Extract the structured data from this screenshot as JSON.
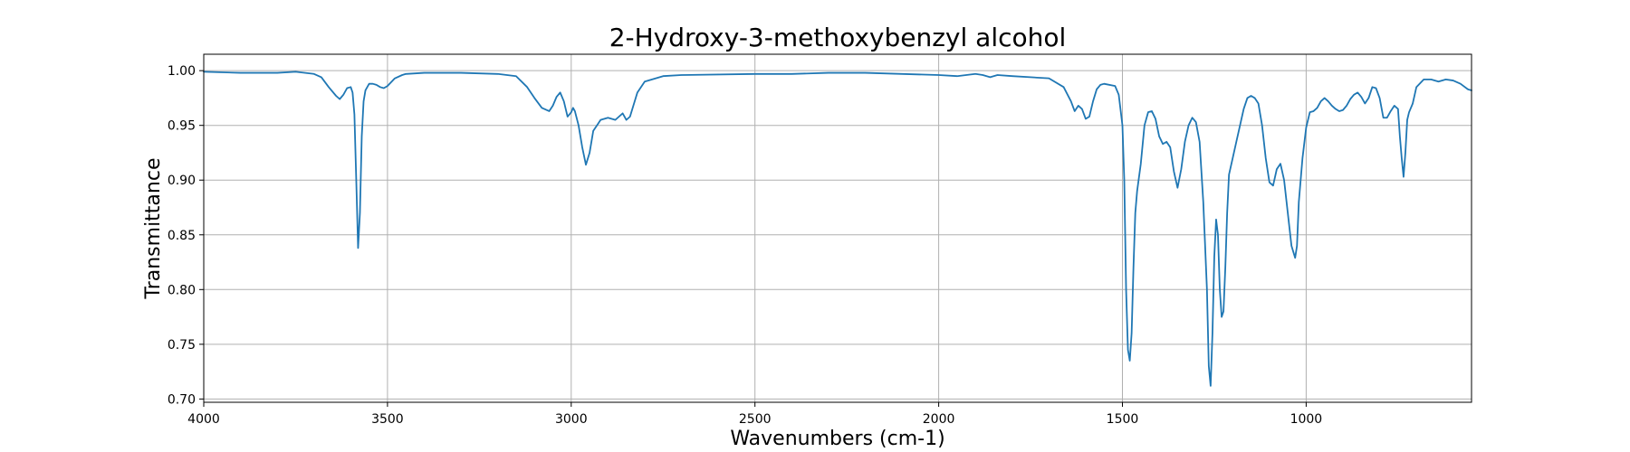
{
  "chart_data": {
    "type": "line",
    "title": "2-Hydroxy-3-methoxybenzyl alcohol",
    "xlabel": "Wavenumbers (cm-1)",
    "ylabel": "Transmittance",
    "xlim": [
      4000,
      550
    ],
    "ylim": [
      0.697,
      1.015
    ],
    "x_reversed": true,
    "grid": true,
    "x_ticks": [
      4000,
      3500,
      3000,
      2500,
      2000,
      1500,
      1000
    ],
    "x_tick_labels": [
      "4000",
      "3500",
      "3000",
      "2500",
      "2000",
      "1500",
      "1000"
    ],
    "y_ticks": [
      0.7,
      0.75,
      0.8,
      0.85,
      0.9,
      0.95,
      1.0
    ],
    "y_tick_labels": [
      "0.70",
      "0.75",
      "0.80",
      "0.85",
      "0.90",
      "0.95",
      "1.00"
    ],
    "series": [
      {
        "color": "#1f77b4",
        "x": [
          4000,
          3900,
          3800,
          3750,
          3700,
          3680,
          3660,
          3640,
          3630,
          3620,
          3610,
          3600,
          3595,
          3590,
          3585,
          3580,
          3575,
          3570,
          3565,
          3560,
          3550,
          3540,
          3530,
          3520,
          3510,
          3500,
          3480,
          3460,
          3450,
          3400,
          3300,
          3200,
          3150,
          3120,
          3100,
          3080,
          3060,
          3050,
          3040,
          3030,
          3020,
          3010,
          3000,
          2995,
          2990,
          2980,
          2970,
          2960,
          2950,
          2940,
          2930,
          2920,
          2900,
          2880,
          2870,
          2860,
          2850,
          2840,
          2820,
          2800,
          2750,
          2700,
          2500,
          2400,
          2300,
          2200,
          2000,
          1950,
          1900,
          1880,
          1860,
          1840,
          1800,
          1700,
          1660,
          1640,
          1630,
          1620,
          1610,
          1600,
          1590,
          1580,
          1570,
          1560,
          1550,
          1520,
          1510,
          1500,
          1495,
          1490,
          1485,
          1480,
          1475,
          1470,
          1465,
          1460,
          1450,
          1440,
          1430,
          1420,
          1410,
          1400,
          1390,
          1380,
          1370,
          1360,
          1350,
          1340,
          1330,
          1320,
          1310,
          1300,
          1290,
          1280,
          1270,
          1265,
          1260,
          1255,
          1250,
          1245,
          1240,
          1235,
          1230,
          1225,
          1220,
          1215,
          1210,
          1200,
          1190,
          1180,
          1170,
          1160,
          1150,
          1140,
          1130,
          1120,
          1110,
          1100,
          1090,
          1080,
          1070,
          1060,
          1050,
          1040,
          1030,
          1025,
          1020,
          1010,
          1000,
          990,
          980,
          970,
          960,
          950,
          940,
          930,
          920,
          910,
          900,
          890,
          880,
          870,
          860,
          850,
          840,
          830,
          820,
          810,
          800,
          790,
          780,
          770,
          760,
          750,
          745,
          740,
          735,
          730,
          725,
          720,
          710,
          700,
          680,
          660,
          640,
          620,
          600,
          580,
          560,
          550
        ],
        "y": [
          0.999,
          0.998,
          0.998,
          0.999,
          0.997,
          0.994,
          0.985,
          0.977,
          0.974,
          0.978,
          0.984,
          0.985,
          0.98,
          0.96,
          0.9,
          0.838,
          0.87,
          0.94,
          0.972,
          0.982,
          0.988,
          0.988,
          0.987,
          0.985,
          0.984,
          0.986,
          0.993,
          0.996,
          0.997,
          0.998,
          0.998,
          0.997,
          0.995,
          0.985,
          0.975,
          0.966,
          0.963,
          0.968,
          0.976,
          0.98,
          0.972,
          0.958,
          0.962,
          0.966,
          0.963,
          0.95,
          0.93,
          0.914,
          0.925,
          0.945,
          0.95,
          0.955,
          0.957,
          0.955,
          0.958,
          0.961,
          0.955,
          0.958,
          0.98,
          0.99,
          0.995,
          0.996,
          0.997,
          0.997,
          0.998,
          0.998,
          0.996,
          0.995,
          0.997,
          0.996,
          0.994,
          0.996,
          0.995,
          0.993,
          0.985,
          0.972,
          0.963,
          0.968,
          0.965,
          0.956,
          0.958,
          0.972,
          0.983,
          0.987,
          0.988,
          0.986,
          0.978,
          0.95,
          0.9,
          0.8,
          0.745,
          0.735,
          0.76,
          0.82,
          0.87,
          0.89,
          0.915,
          0.95,
          0.962,
          0.963,
          0.956,
          0.94,
          0.933,
          0.935,
          0.93,
          0.908,
          0.893,
          0.91,
          0.935,
          0.95,
          0.957,
          0.953,
          0.935,
          0.88,
          0.8,
          0.73,
          0.712,
          0.76,
          0.83,
          0.864,
          0.85,
          0.8,
          0.775,
          0.78,
          0.82,
          0.87,
          0.905,
          0.92,
          0.935,
          0.95,
          0.965,
          0.975,
          0.977,
          0.975,
          0.97,
          0.95,
          0.92,
          0.898,
          0.895,
          0.91,
          0.915,
          0.9,
          0.87,
          0.84,
          0.829,
          0.84,
          0.88,
          0.92,
          0.948,
          0.962,
          0.963,
          0.966,
          0.972,
          0.975,
          0.972,
          0.968,
          0.965,
          0.963,
          0.964,
          0.968,
          0.974,
          0.978,
          0.98,
          0.976,
          0.97,
          0.975,
          0.985,
          0.984,
          0.975,
          0.957,
          0.957,
          0.963,
          0.968,
          0.965,
          0.94,
          0.92,
          0.903,
          0.925,
          0.955,
          0.962,
          0.97,
          0.985,
          0.992,
          0.992,
          0.99,
          0.992,
          0.991,
          0.988,
          0.983,
          0.982
        ]
      }
    ]
  }
}
